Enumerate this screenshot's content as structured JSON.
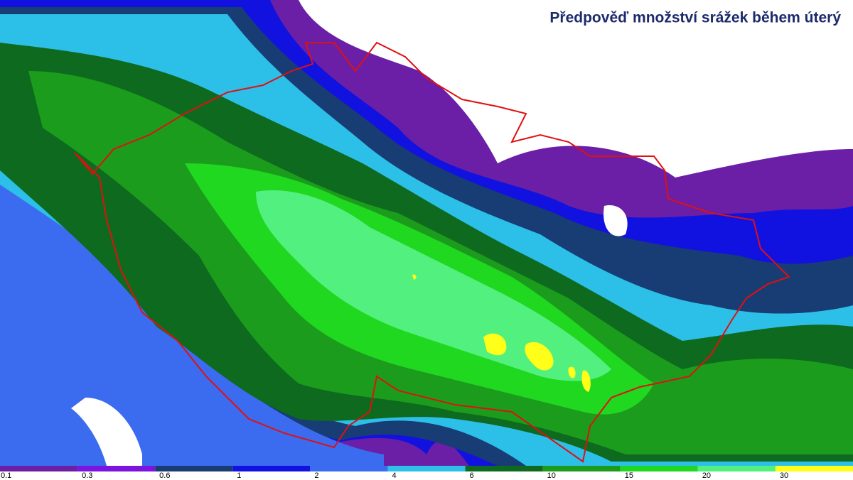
{
  "title": "Předpověď množství srážek během úterý",
  "legend": {
    "labels": [
      0.1,
      0.3,
      0.6,
      1,
      2,
      4,
      6,
      10,
      15,
      20,
      30
    ],
    "colors": [
      "#6a1fa6",
      "#7a14de",
      "#183c74",
      "#1212e0",
      "#3b6cf0",
      "#2cbfe8",
      "#0d6a1e",
      "#1c9c1c",
      "#1fd81f",
      "#52f07e",
      "#ffff1a"
    ]
  }
}
